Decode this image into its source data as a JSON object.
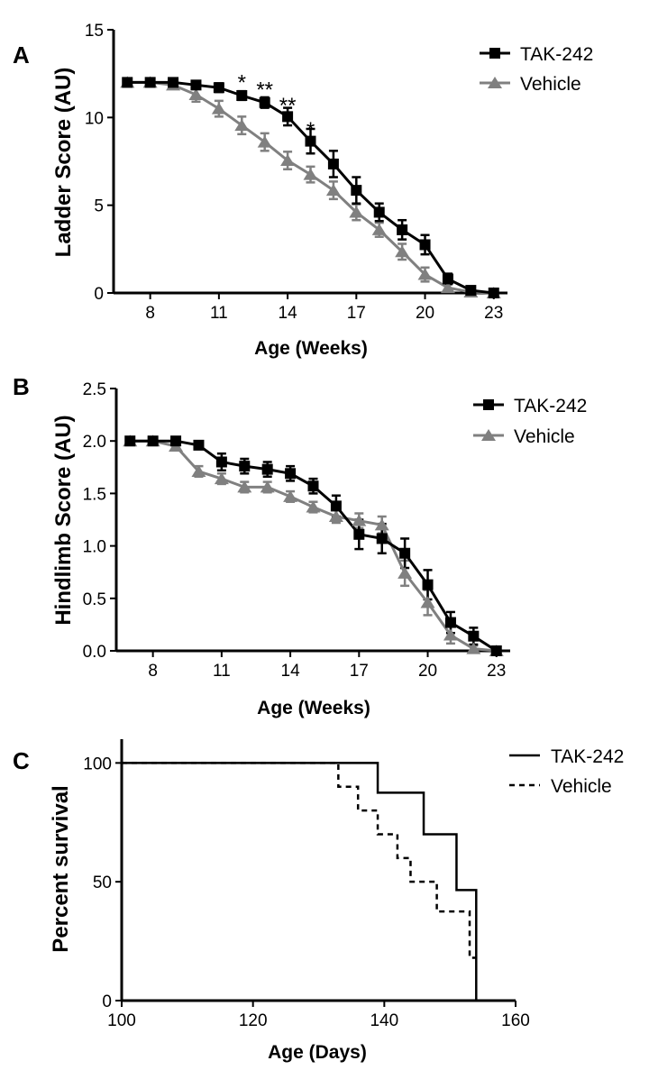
{
  "chart_data": [
    {
      "panel_letter": "A",
      "type": "line",
      "xlabel": "Age (Weeks)",
      "ylabel": "Ladder Score (AU)",
      "xlim": [
        6.4,
        23.6
      ],
      "ylim": [
        0,
        15
      ],
      "xticks": [
        8,
        11,
        14,
        17,
        20,
        23
      ],
      "yticks": [
        0,
        5,
        10,
        15
      ],
      "xtick_labels": [
        "8",
        "11",
        "14",
        "17",
        "20",
        "23"
      ],
      "ytick_labels": [
        "0",
        "5",
        "10",
        "15"
      ],
      "legend": {
        "position": "top-right",
        "entries": [
          "TAK-242",
          "Vehicle"
        ]
      },
      "series": [
        {
          "name": "TAK-242",
          "marker": "square",
          "color": "#000000",
          "x": [
            7,
            8,
            9,
            10,
            11,
            12,
            13,
            14,
            15,
            16,
            17,
            18,
            19,
            20,
            21,
            22,
            23
          ],
          "values": [
            12.0,
            12.0,
            12.0,
            11.85,
            11.7,
            11.25,
            10.85,
            10.05,
            8.65,
            7.35,
            5.85,
            4.6,
            3.6,
            2.75,
            0.8,
            0.15,
            0
          ],
          "error": [
            0.15,
            0.15,
            0.15,
            0.2,
            0.25,
            0.25,
            0.3,
            0.5,
            0.7,
            0.75,
            0.75,
            0.5,
            0.55,
            0.55,
            0.3,
            0.15,
            0.1
          ]
        },
        {
          "name": "Vehicle",
          "marker": "triangle",
          "color": "#808080",
          "x": [
            7,
            8,
            9,
            10,
            11,
            12,
            13,
            14,
            15,
            16,
            17,
            18,
            19,
            20,
            21,
            22,
            23
          ],
          "values": [
            12.0,
            12.0,
            11.85,
            11.3,
            10.5,
            9.55,
            8.6,
            7.55,
            6.75,
            5.85,
            4.6,
            3.6,
            2.35,
            1.05,
            0.3,
            0.05,
            0
          ],
          "error": [
            0.15,
            0.15,
            0.2,
            0.4,
            0.45,
            0.5,
            0.5,
            0.5,
            0.45,
            0.5,
            0.45,
            0.4,
            0.45,
            0.4,
            0.2,
            0.1,
            0.05
          ]
        }
      ],
      "annotations": [
        {
          "text": "*",
          "x": 12,
          "y": 12.2
        },
        {
          "text": "**",
          "x": 13,
          "y": 11.8
        },
        {
          "text": "**",
          "x": 14,
          "y": 10.9
        },
        {
          "text": "*",
          "x": 15,
          "y": 9.5
        }
      ]
    },
    {
      "panel_letter": "B",
      "type": "line",
      "xlabel": "Age (Weeks)",
      "ylabel": "Hindlimb Score (AU)",
      "xlim": [
        6.4,
        23.6
      ],
      "ylim": [
        0,
        2.5
      ],
      "xticks": [
        8,
        11,
        14,
        17,
        20,
        23
      ],
      "yticks": [
        0,
        0.5,
        1.0,
        1.5,
        2.0,
        2.5
      ],
      "xtick_labels": [
        "8",
        "11",
        "14",
        "17",
        "20",
        "23"
      ],
      "ytick_labels": [
        "0.0",
        "0.5",
        "1.0",
        "1.5",
        "2.0",
        "2.5"
      ],
      "legend": {
        "position": "top-right",
        "entries": [
          "TAK-242",
          "Vehicle"
        ]
      },
      "series": [
        {
          "name": "TAK-242",
          "marker": "square",
          "color": "#000000",
          "x": [
            7,
            8,
            9,
            10,
            11,
            12,
            13,
            14,
            15,
            16,
            17,
            18,
            19,
            20,
            21,
            22,
            23
          ],
          "values": [
            2.0,
            2.0,
            2.0,
            1.96,
            1.8,
            1.76,
            1.73,
            1.69,
            1.57,
            1.38,
            1.11,
            1.07,
            0.93,
            0.63,
            0.27,
            0.14,
            0
          ],
          "error": [
            0.02,
            0.02,
            0.02,
            0.03,
            0.08,
            0.07,
            0.07,
            0.07,
            0.07,
            0.1,
            0.14,
            0.14,
            0.14,
            0.14,
            0.1,
            0.08,
            0.03
          ]
        },
        {
          "name": "Vehicle",
          "marker": "triangle",
          "color": "#808080",
          "x": [
            7,
            8,
            9,
            10,
            11,
            12,
            13,
            14,
            15,
            16,
            17,
            18,
            19,
            20,
            21,
            22,
            23
          ],
          "values": [
            2.0,
            2.0,
            1.95,
            1.71,
            1.64,
            1.56,
            1.56,
            1.47,
            1.37,
            1.28,
            1.24,
            1.2,
            0.74,
            0.46,
            0.15,
            0.02,
            0
          ],
          "error": [
            0.02,
            0.02,
            0.04,
            0.05,
            0.05,
            0.05,
            0.05,
            0.05,
            0.05,
            0.06,
            0.07,
            0.08,
            0.12,
            0.12,
            0.08,
            0.03,
            0.02
          ]
        }
      ],
      "annotations": []
    },
    {
      "panel_letter": "C",
      "type": "line",
      "subtype": "kaplan-meier step",
      "xlabel": "Age (Days)",
      "ylabel": "Percent survival",
      "xlim": [
        100,
        160
      ],
      "ylim": [
        0,
        110
      ],
      "xticks": [
        100,
        120,
        140,
        160
      ],
      "yticks": [
        0,
        50,
        100
      ],
      "xtick_labels": [
        "100",
        "120",
        "140",
        "160"
      ],
      "ytick_labels": [
        "0",
        "50",
        "100"
      ],
      "legend": {
        "position": "top-right",
        "entries": [
          "TAK-242",
          "Vehicle"
        ]
      },
      "series": [
        {
          "name": "TAK-242",
          "line_style": "solid",
          "color": "#000000",
          "x": [
            100,
            139,
            146,
            151,
            154
          ],
          "values": [
            100,
            87.5,
            70,
            46.5,
            0
          ]
        },
        {
          "name": "Vehicle",
          "line_style": "dashed",
          "color": "#000000",
          "x": [
            100,
            133,
            136,
            139,
            142,
            144,
            148,
            153,
            154
          ],
          "values": [
            100,
            90,
            80,
            70,
            60,
            50,
            37.5,
            18,
            18
          ]
        }
      ]
    }
  ]
}
